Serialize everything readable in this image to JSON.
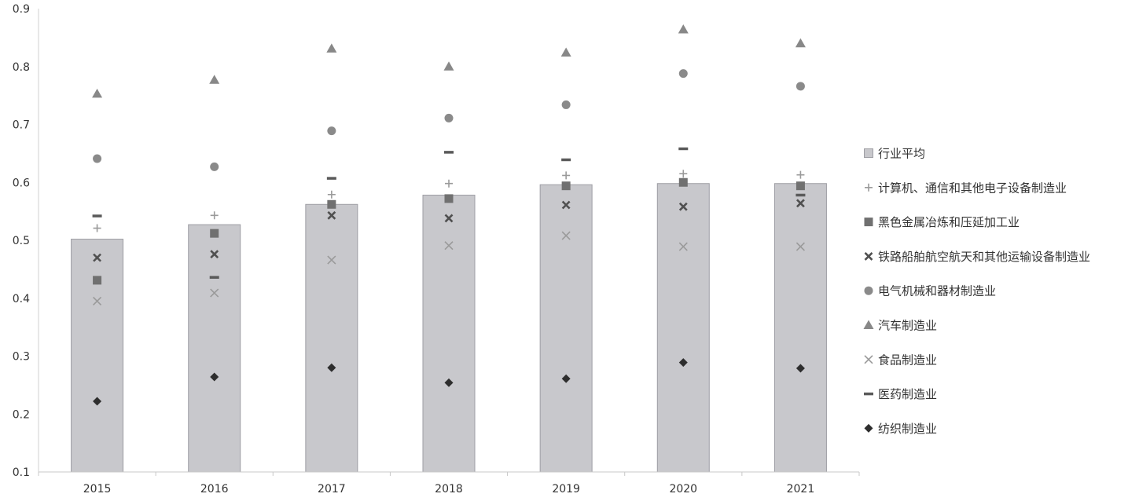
{
  "chart_data": {
    "type": "bar",
    "categories": [
      "2015",
      "2016",
      "2017",
      "2018",
      "2019",
      "2020",
      "2021"
    ],
    "ylim": [
      0.1,
      0.9
    ],
    "yticks": [
      "0.9",
      "0.8",
      "0.7",
      "0.6",
      "0.5",
      "0.4",
      "0.3",
      "0.2",
      "0.1"
    ],
    "grid": false,
    "legend_position": "right",
    "bar_series": {
      "name": "行业平均",
      "color": "#c8c8cc",
      "values": [
        0.502,
        0.527,
        0.562,
        0.578,
        0.596,
        0.598,
        0.598
      ]
    },
    "series": [
      {
        "name": "计算机、通信和其他电子设备制造业",
        "marker": "plus",
        "color": "#9a9a9a",
        "values": [
          0.521,
          0.543,
          0.579,
          0.598,
          0.612,
          0.615,
          0.613
        ]
      },
      {
        "name": "黑色金属冶炼和压延加工业",
        "marker": "square",
        "color": "#707070",
        "values": [
          0.431,
          0.512,
          0.562,
          0.572,
          0.594,
          0.6,
          0.594
        ]
      },
      {
        "name": "铁路船舶航空航天和其他运输设备制造业",
        "marker": "x-bold",
        "color": "#505050",
        "values": [
          0.47,
          0.476,
          0.543,
          0.538,
          0.561,
          0.558,
          0.564
        ]
      },
      {
        "name": "电气机械和器材制造业",
        "marker": "circle",
        "color": "#8a8a8a",
        "values": [
          0.641,
          0.627,
          0.689,
          0.711,
          0.734,
          0.788,
          0.766
        ]
      },
      {
        "name": "汽车制造业",
        "marker": "triangle",
        "color": "#888888",
        "values": [
          0.753,
          0.777,
          0.831,
          0.8,
          0.824,
          0.864,
          0.84
        ]
      },
      {
        "name": "食品制造业",
        "marker": "x-thin",
        "color": "#9a9a9a",
        "values": [
          0.395,
          0.409,
          0.466,
          0.491,
          0.508,
          0.489,
          0.489
        ]
      },
      {
        "name": "医药制造业",
        "marker": "dash",
        "color": "#5a5a5a",
        "values": [
          0.542,
          0.436,
          0.607,
          0.652,
          0.639,
          0.658,
          0.578
        ]
      },
      {
        "name": "纺织制造业",
        "marker": "diamond",
        "color": "#2e2e2e",
        "values": [
          0.222,
          0.264,
          0.28,
          0.254,
          0.261,
          0.289,
          0.279
        ]
      }
    ]
  }
}
